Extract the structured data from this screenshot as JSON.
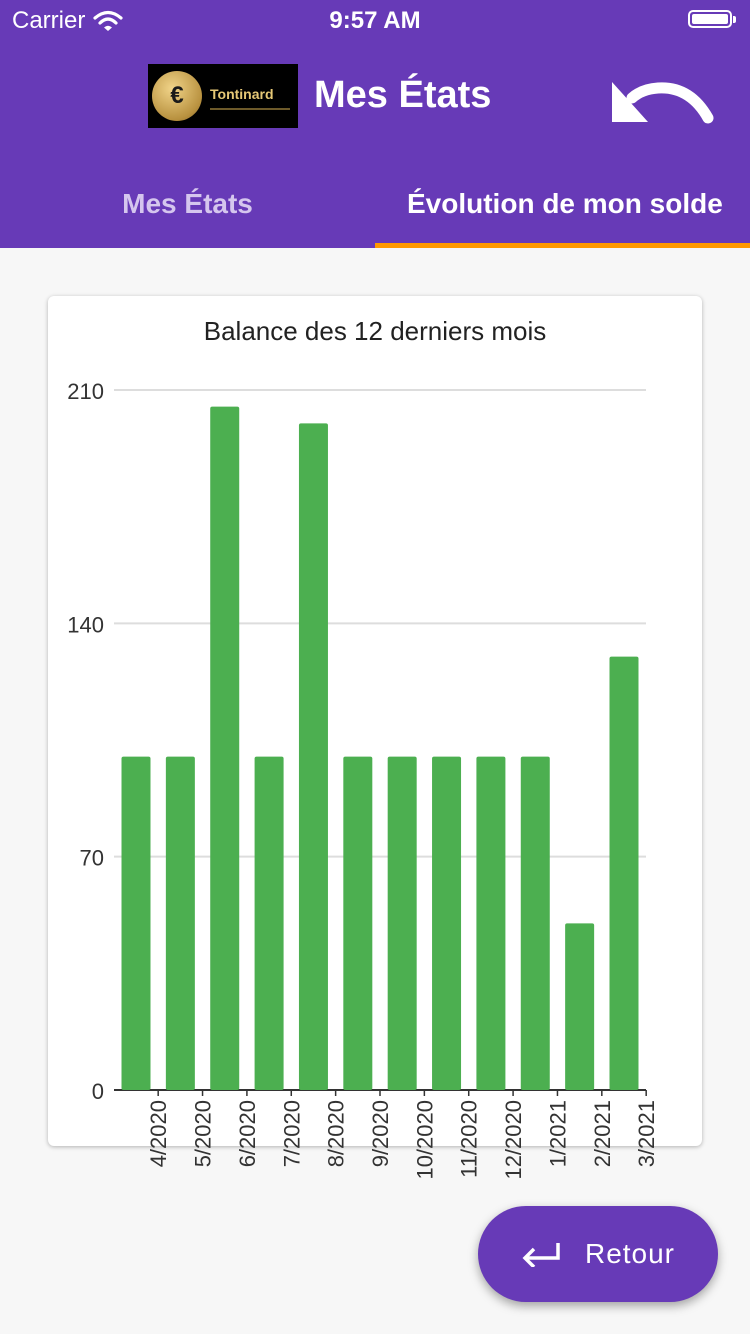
{
  "status_bar": {
    "carrier": "Carrier",
    "time": "9:57 AM"
  },
  "header": {
    "logo_text": "Tontinard",
    "logo_symbol": "€",
    "title": "Mes États",
    "back_icon": "undo-arrow-icon"
  },
  "tabs": [
    {
      "label": "Mes États",
      "selected": false
    },
    {
      "label": "Évolution de mon solde",
      "selected": true
    }
  ],
  "colors": {
    "primary": "#673ab7",
    "tab_indicator": "#ff9800",
    "bar": "#4caf50"
  },
  "fab": {
    "label": "Retour",
    "icon": "return-enter-icon"
  },
  "chart_data": {
    "type": "bar",
    "title": "Balance des 12 derniers mois",
    "categories": [
      "4/2020",
      "5/2020",
      "6/2020",
      "7/2020",
      "8/2020",
      "9/2020",
      "10/2020",
      "11/2020",
      "12/2020",
      "1/2021",
      "2/2021",
      "3/2021"
    ],
    "values": [
      100,
      100,
      205,
      100,
      200,
      100,
      100,
      100,
      100,
      100,
      50,
      130
    ],
    "y_ticks": [
      0,
      70,
      140,
      210
    ],
    "ylim": [
      0,
      210
    ],
    "grid": true,
    "bar_color": "#4caf50"
  }
}
